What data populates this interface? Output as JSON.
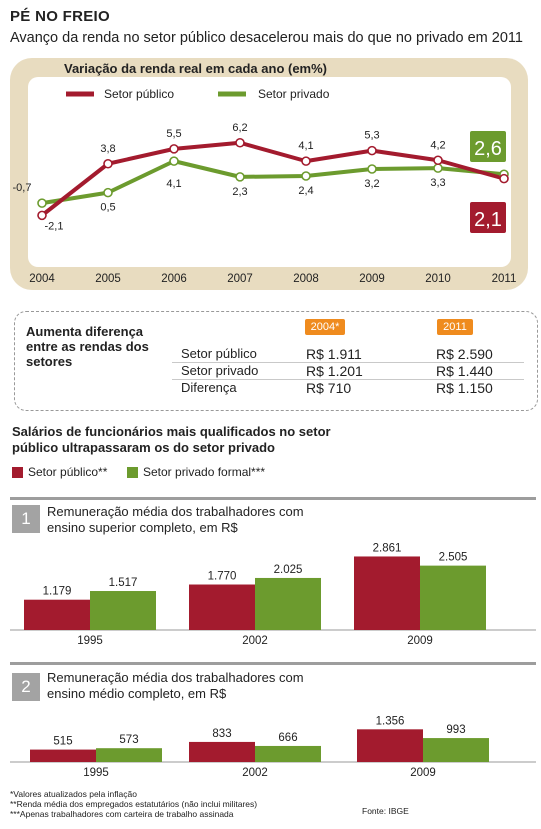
{
  "header": {
    "title": "PÉ NO FREIO",
    "subtitle": "Avanço da renda no setor público desacelerou mais do que no privado em 2011"
  },
  "colors": {
    "public": "#a31b2e",
    "private": "#6c9b2e",
    "badge": "#ef8b1e",
    "panel": "#e8dcc0"
  },
  "chart_data": [
    {
      "type": "line",
      "title": "Variação da renda real em cada ano (em%)",
      "x": [
        "2004",
        "2005",
        "2006",
        "2007",
        "2008",
        "2009",
        "2010",
        "2011"
      ],
      "series": [
        {
          "name": "Setor público",
          "values": [
            -2.1,
            3.8,
            5.5,
            6.2,
            4.1,
            5.3,
            4.2,
            2.1
          ],
          "labels": [
            "-2,1",
            "3,8",
            "5,5",
            "6,2",
            "4,1",
            "5,3",
            "4,2",
            "2,1"
          ]
        },
        {
          "name": "Setor privado",
          "values": [
            -0.7,
            0.5,
            4.1,
            2.3,
            2.4,
            3.2,
            3.3,
            2.6
          ],
          "labels": [
            "-0,7",
            "0,5",
            "4,1",
            "2,3",
            "2,4",
            "3,2",
            "3,3",
            "2,6"
          ]
        }
      ],
      "legend": "top-left"
    },
    {
      "type": "table",
      "title": "Aumenta diferença entre as rendas dos setores",
      "columns": [
        "2004*",
        "2011"
      ],
      "rows": [
        {
          "label": "Setor público",
          "values": [
            "R$ 1.911",
            "R$ 2.590"
          ]
        },
        {
          "label": "Setor privado",
          "values": [
            "R$ 1.201",
            "R$ 1.440"
          ]
        },
        {
          "label": "Diferença",
          "values": [
            "R$ 710",
            "R$ 1.150"
          ]
        }
      ]
    },
    {
      "type": "bar",
      "title": "Remuneração média dos trabalhadores com ensino superior completo, em R$",
      "number": "1",
      "categories": [
        "1995",
        "2002",
        "2009"
      ],
      "series": [
        {
          "name": "Setor público**",
          "values": [
            1179,
            1770,
            2861
          ],
          "labels": [
            "1.179",
            "1.770",
            "2.861"
          ]
        },
        {
          "name": "Setor privado formal***",
          "values": [
            1517,
            2025,
            2505
          ],
          "labels": [
            "1.517",
            "2.025",
            "2.505"
          ]
        }
      ]
    },
    {
      "type": "bar",
      "title": "Remuneração média dos trabalhadores com ensino médio completo, em R$",
      "number": "2",
      "categories": [
        "1995",
        "2002",
        "2009"
      ],
      "series": [
        {
          "name": "Setor público**",
          "values": [
            515,
            833,
            1356
          ],
          "labels": [
            "515",
            "833",
            "1.356"
          ]
        },
        {
          "name": "Setor privado formal***",
          "values": [
            573,
            666,
            993
          ],
          "labels": [
            "573",
            "666",
            "993"
          ]
        }
      ]
    }
  ],
  "bars_section": {
    "heading": "Salários de funcionários mais qualificados no setor público ultrapassaram os do setor privado",
    "legend_public": "Setor público**",
    "legend_private": "Setor privado formal***"
  },
  "footnotes": [
    "*Valores atualizados pela inflação",
    "**Renda média dos empregados estatutários (não inclui militares)",
    "***Apenas trabalhadores com carteira de trabalho assinada"
  ],
  "source": "Fonte: IBGE"
}
